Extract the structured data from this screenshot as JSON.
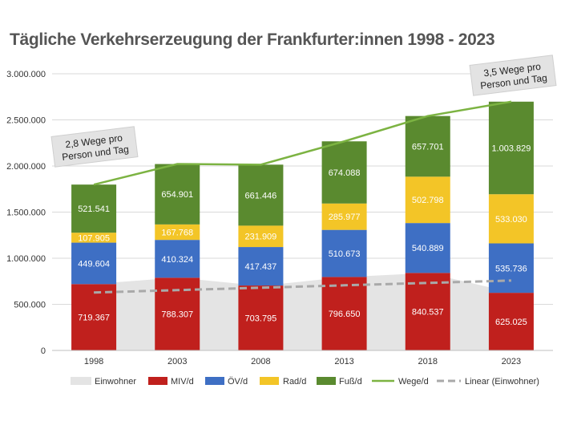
{
  "chart_data": {
    "type": "bar",
    "title": "Tägliche Verkehrserzeugung der Frankfurter:innen 1998 - 2023",
    "categories": [
      "1998",
      "2003",
      "2008",
      "2013",
      "2018",
      "2023"
    ],
    "ylim": [
      0,
      3000000
    ],
    "yticks": [
      0,
      500000,
      1000000,
      1500000,
      2000000,
      2500000,
      3000000
    ],
    "ytick_labels": [
      "0",
      "500.000",
      "1.000.000",
      "1.500.000",
      "2.000.000",
      "2.500.000",
      "3.000.000"
    ],
    "grid": true,
    "legend_position": "bottom",
    "series": [
      {
        "name": "Einwohner",
        "kind": "area",
        "color": "#e4e4e4",
        "values": [
          720000,
          790000,
          700000,
          795000,
          840000,
          630000
        ]
      },
      {
        "name": "MIV/d",
        "kind": "stacked-bar",
        "color": "#c0201d",
        "values": [
          719367,
          788307,
          703795,
          796650,
          840537,
          625025
        ],
        "labels": [
          "719.367",
          "788.307",
          "703.795",
          "796.650",
          "840.537",
          "625.025"
        ]
      },
      {
        "name": "ÖV/d",
        "kind": "stacked-bar",
        "color": "#3e6fc4",
        "values": [
          449604,
          410324,
          417437,
          510673,
          540889,
          535736
        ],
        "labels": [
          "449.604",
          "410.324",
          "417.437",
          "510.673",
          "540.889",
          "535.736"
        ]
      },
      {
        "name": "Rad/d",
        "kind": "stacked-bar",
        "color": "#f3c527",
        "values": [
          107905,
          167768,
          231909,
          285977,
          502798,
          533030
        ],
        "labels": [
          "107.905",
          "167.768",
          "231.909",
          "285.977",
          "502.798",
          "533.030"
        ]
      },
      {
        "name": "Fuß/d",
        "kind": "stacked-bar",
        "color": "#5a8a2f",
        "values": [
          521541,
          654901,
          661446,
          674088,
          657701,
          1003829
        ],
        "labels": [
          "521.541",
          "654.901",
          "661.446",
          "674.088",
          "657.701",
          "1.003.829"
        ]
      },
      {
        "name": "Wege/d",
        "kind": "line",
        "color": "#7cb342",
        "values": [
          1798417,
          2021300,
          2014587,
          2267388,
          2541925,
          2697620
        ]
      },
      {
        "name": "Linear (Einwohner)",
        "kind": "dashed-line",
        "color": "#a9a9a9",
        "values": [
          628000,
          654000,
          680000,
          706000,
          732000,
          758000
        ]
      }
    ],
    "annotations": [
      {
        "text_lines": [
          "2,8 Wege pro",
          "Person und Tag"
        ],
        "category": "1998"
      },
      {
        "text_lines": [
          "3,5 Wege pro",
          "Person und Tag"
        ],
        "category": "2023"
      }
    ]
  }
}
